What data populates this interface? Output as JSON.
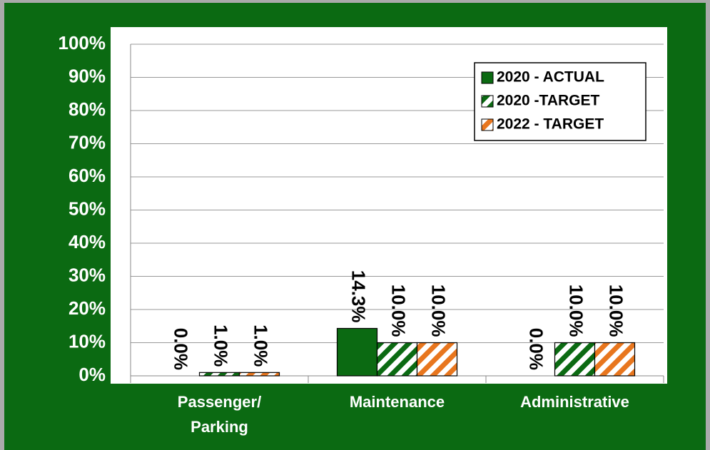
{
  "chart_data": {
    "type": "bar",
    "categories": [
      "Passenger/\nParking",
      "Maintenance",
      "Administrative"
    ],
    "series": [
      {
        "name": "2020 - ACTUAL",
        "color": "#0b6a12",
        "fill": "solid",
        "values": [
          0,
          14.3,
          0
        ],
        "value_labels": [
          "0.0%",
          "14.3%",
          "0.0%"
        ]
      },
      {
        "name": "2020 -TARGET",
        "color": "#0b6a12",
        "fill": "hatch",
        "values": [
          1,
          10,
          10
        ],
        "value_labels": [
          "1.0%",
          "10.0%",
          "10.0%"
        ]
      },
      {
        "name": "2022 - TARGET",
        "color": "#e8761e",
        "fill": "hatch",
        "values": [
          1,
          10,
          10
        ],
        "value_labels": [
          "1.0%",
          "10.0%",
          "10.0%"
        ]
      }
    ],
    "ylim": [
      0,
      100
    ],
    "yticks": [
      {
        "value": 0,
        "label": "0%"
      },
      {
        "value": 10,
        "label": "10%"
      },
      {
        "value": 20,
        "label": "20%"
      },
      {
        "value": 30,
        "label": "30%"
      },
      {
        "value": 40,
        "label": "40%"
      },
      {
        "value": 50,
        "label": "50%"
      },
      {
        "value": 60,
        "label": "60%"
      },
      {
        "value": 70,
        "label": "70%"
      },
      {
        "value": 80,
        "label": "80%"
      },
      {
        "value": 90,
        "label": "90%"
      },
      {
        "value": 100,
        "label": "100%"
      }
    ],
    "grid": true,
    "legend": "top-right",
    "background": "#0b6a12"
  }
}
